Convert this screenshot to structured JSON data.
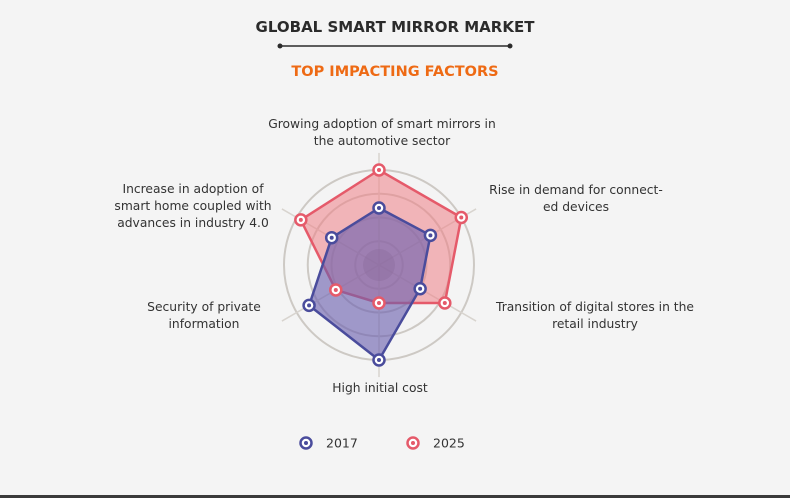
{
  "chart_data": {
    "type": "radar",
    "title": "GLOBAL SMART MIRROR MARKET",
    "subtitle": "TOP IMPACTING FACTORS",
    "categories": [
      [
        "Growing adoption of smart mirrors in",
        "the automotive sector"
      ],
      [
        "Rise in demand for connect-",
        "ed devices"
      ],
      [
        "Transition of digital stores in the",
        "retail industry"
      ],
      [
        "High initial cost"
      ],
      [
        "Security of private",
        "information"
      ],
      [
        "Increase in adoption of",
        "smart home coupled with",
        "advances in industry 4.0"
      ]
    ],
    "scale_max": 4,
    "rings": 4,
    "series": [
      {
        "name": "2017",
        "values": [
          2.4,
          2.5,
          2.0,
          4.0,
          3.4,
          2.3
        ],
        "stroke": "#4a4c9c",
        "fill": "#6a5fae",
        "fill_opacity": 0.62
      },
      {
        "name": "2025",
        "values": [
          4.0,
          4.0,
          3.2,
          1.6,
          2.1,
          3.8
        ],
        "stroke": "#e55a6a",
        "fill": "#ee7f86",
        "fill_opacity": 0.55
      }
    ],
    "legend": {
      "position": "bottom",
      "items": [
        "2017",
        "2025"
      ]
    }
  },
  "colors": {
    "background": "#f4f4f4",
    "ring": "#cdc9c4",
    "spoke": "#d8d4cf",
    "core": "#9a8e8a"
  }
}
